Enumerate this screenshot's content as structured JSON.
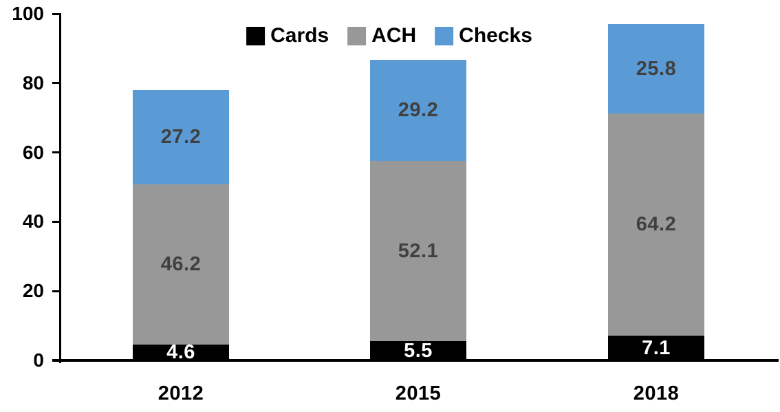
{
  "chart_data": {
    "type": "bar",
    "stacked": true,
    "title": "",
    "xlabel": "",
    "ylabel": "",
    "categories": [
      "2012",
      "2015",
      "2018"
    ],
    "series": [
      {
        "name": "Cards",
        "color": "#000000",
        "label_color": "#ffffff",
        "values": [
          4.6,
          5.5,
          7.1
        ]
      },
      {
        "name": "ACH",
        "color": "#989898",
        "label_color": "#404040",
        "values": [
          46.2,
          52.1,
          64.2
        ]
      },
      {
        "name": "Checks",
        "color": "#5B9BD5",
        "label_color": "#404040",
        "values": [
          27.2,
          29.2,
          25.8
        ]
      }
    ],
    "totals": [
      78.0,
      86.8,
      97.1
    ],
    "ylim": [
      0,
      100
    ],
    "yticks": [
      0,
      20,
      40,
      60,
      80,
      100
    ],
    "grid": false,
    "legend_position": "top-center",
    "axis_color": "#000000",
    "background_color": "#ffffff"
  }
}
